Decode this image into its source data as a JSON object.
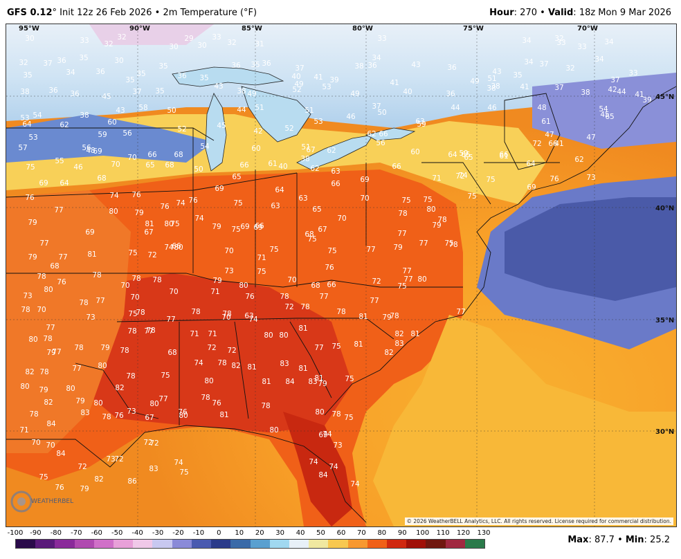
{
  "header": {
    "model": "GFS 0.12",
    "model_deg": "°",
    "init": "Init 12z 26 Feb 2026",
    "sep1": "•",
    "field": "2m Temperature (°F)",
    "hour_label": "Hour",
    "hour_value": "270",
    "sep2": "•",
    "valid_label": "Valid",
    "valid_value": "18z Mon 9 Mar 2026"
  },
  "map": {
    "lon_labels": [
      "95°W",
      "90°W",
      "85°W",
      "80°W",
      "75°W",
      "70°W"
    ],
    "lat_labels": [
      "45°N",
      "40°N",
      "35°N",
      "30°N"
    ],
    "copyright": "© 2026 WeatherBELL Analytics, LLC. All rights reserved. License required for commercial distribution.",
    "logo_text": "WEATHERBELL",
    "temperatures": [
      {
        "v": "30"
      },
      {
        "v": "33"
      },
      {
        "v": "32"
      },
      {
        "v": "32"
      },
      {
        "v": "30"
      },
      {
        "v": "29"
      },
      {
        "v": "30"
      },
      {
        "v": "33"
      },
      {
        "v": "32"
      },
      {
        "v": "31"
      },
      {
        "v": "33"
      },
      {
        "v": "34"
      },
      {
        "v": "33"
      },
      {
        "v": "32"
      },
      {
        "v": "33"
      },
      {
        "v": "34"
      },
      {
        "v": "32"
      },
      {
        "v": "37"
      },
      {
        "v": "36"
      },
      {
        "v": "35"
      },
      {
        "v": "30"
      },
      {
        "v": "35"
      },
      {
        "v": "36"
      },
      {
        "v": "35"
      },
      {
        "v": "36"
      },
      {
        "v": "37"
      },
      {
        "v": "34"
      },
      {
        "v": "36"
      },
      {
        "v": "43"
      },
      {
        "v": "36"
      },
      {
        "v": "43"
      },
      {
        "v": "34"
      },
      {
        "v": "37"
      },
      {
        "v": "32"
      },
      {
        "v": "34"
      },
      {
        "v": "33"
      },
      {
        "v": "35"
      },
      {
        "v": "34"
      },
      {
        "v": "36"
      },
      {
        "v": "35"
      },
      {
        "v": "35"
      },
      {
        "v": "36"
      },
      {
        "v": "35"
      },
      {
        "v": "40"
      },
      {
        "v": "41"
      },
      {
        "v": "39"
      },
      {
        "v": "38"
      },
      {
        "v": "41"
      },
      {
        "v": "51"
      },
      {
        "v": "49"
      },
      {
        "v": "35"
      },
      {
        "v": "38"
      },
      {
        "v": "38"
      },
      {
        "v": "41"
      },
      {
        "v": "37"
      },
      {
        "v": "37"
      },
      {
        "v": "38"
      },
      {
        "v": "36"
      },
      {
        "v": "36"
      },
      {
        "v": "45"
      },
      {
        "v": "37"
      },
      {
        "v": "35"
      },
      {
        "v": "38"
      },
      {
        "v": "43"
      },
      {
        "v": "49"
      },
      {
        "v": "52"
      },
      {
        "v": "49"
      },
      {
        "v": "53"
      },
      {
        "v": "49"
      },
      {
        "v": "40"
      },
      {
        "v": "36"
      },
      {
        "v": "38"
      },
      {
        "v": "42"
      },
      {
        "v": "44"
      },
      {
        "v": "41"
      },
      {
        "v": "39"
      },
      {
        "v": "53"
      },
      {
        "v": "54"
      },
      {
        "v": "38"
      },
      {
        "v": "43"
      },
      {
        "v": "58"
      },
      {
        "v": "50"
      },
      {
        "v": "44"
      },
      {
        "v": "51"
      },
      {
        "v": "51"
      },
      {
        "v": "37"
      },
      {
        "v": "44"
      },
      {
        "v": "46"
      },
      {
        "v": "48"
      },
      {
        "v": "54"
      },
      {
        "v": "45"
      },
      {
        "v": "64"
      },
      {
        "v": "62"
      },
      {
        "v": "60"
      },
      {
        "v": "59"
      },
      {
        "v": "56"
      },
      {
        "v": "52"
      },
      {
        "v": "45"
      },
      {
        "v": "42"
      },
      {
        "v": "52"
      },
      {
        "v": "53"
      },
      {
        "v": "46"
      },
      {
        "v": "50"
      },
      {
        "v": "59"
      },
      {
        "v": "63"
      },
      {
        "v": "61"
      },
      {
        "v": "47"
      },
      {
        "v": "65"
      },
      {
        "v": "57"
      },
      {
        "v": "53"
      },
      {
        "v": "56"
      },
      {
        "v": "69"
      },
      {
        "v": "66"
      },
      {
        "v": "54"
      },
      {
        "v": "60"
      },
      {
        "v": "62"
      },
      {
        "v": "62"
      },
      {
        "v": "66"
      },
      {
        "v": "59"
      },
      {
        "v": "65"
      },
      {
        "v": "61"
      },
      {
        "v": "66"
      },
      {
        "v": "72"
      },
      {
        "v": "47"
      },
      {
        "v": "41"
      },
      {
        "v": "48"
      },
      {
        "v": "70"
      },
      {
        "v": "68"
      },
      {
        "v": "66"
      },
      {
        "v": "61"
      },
      {
        "v": "67"
      },
      {
        "v": "51"
      },
      {
        "v": "56"
      },
      {
        "v": "60"
      },
      {
        "v": "64"
      },
      {
        "v": "65"
      },
      {
        "v": "66"
      },
      {
        "v": "64"
      },
      {
        "v": "62"
      },
      {
        "v": "75"
      },
      {
        "v": "55"
      },
      {
        "v": "46"
      },
      {
        "v": "70"
      },
      {
        "v": "65"
      },
      {
        "v": "68"
      },
      {
        "v": "50"
      },
      {
        "v": "40"
      },
      {
        "v": "38"
      },
      {
        "v": "62"
      },
      {
        "v": "63"
      },
      {
        "v": "66"
      },
      {
        "v": "72"
      },
      {
        "v": "69"
      },
      {
        "v": "76"
      },
      {
        "v": "73"
      },
      {
        "v": "69"
      },
      {
        "v": "64"
      },
      {
        "v": "68"
      },
      {
        "v": "69"
      },
      {
        "v": "65"
      },
      {
        "v": "64"
      },
      {
        "v": "66"
      },
      {
        "v": "69"
      },
      {
        "v": "71"
      },
      {
        "v": "74"
      },
      {
        "v": "75"
      },
      {
        "v": "76"
      },
      {
        "v": "74"
      },
      {
        "v": "76"
      },
      {
        "v": "76"
      },
      {
        "v": "74"
      },
      {
        "v": "76"
      },
      {
        "v": "75"
      },
      {
        "v": "63"
      },
      {
        "v": "63"
      },
      {
        "v": "65"
      },
      {
        "v": "70"
      },
      {
        "v": "75"
      },
      {
        "v": "75"
      },
      {
        "v": "75"
      },
      {
        "v": "77"
      },
      {
        "v": "80"
      },
      {
        "v": "79"
      },
      {
        "v": "81"
      },
      {
        "v": "75"
      },
      {
        "v": "79"
      },
      {
        "v": "74"
      },
      {
        "v": "66"
      },
      {
        "v": "67"
      },
      {
        "v": "70"
      },
      {
        "v": "78"
      },
      {
        "v": "80"
      },
      {
        "v": "78"
      },
      {
        "v": "79"
      },
      {
        "v": "79"
      },
      {
        "v": "69"
      },
      {
        "v": "67"
      },
      {
        "v": "80"
      },
      {
        "v": "75"
      },
      {
        "v": "69"
      },
      {
        "v": "69"
      },
      {
        "v": "68"
      },
      {
        "v": "75"
      },
      {
        "v": "77"
      },
      {
        "v": "77"
      },
      {
        "v": "78"
      },
      {
        "v": "77"
      },
      {
        "v": "77"
      },
      {
        "v": "81"
      },
      {
        "v": "75"
      },
      {
        "v": "74"
      },
      {
        "v": "80"
      },
      {
        "v": "70"
      },
      {
        "v": "71"
      },
      {
        "v": "75"
      },
      {
        "v": "75"
      },
      {
        "v": "77"
      },
      {
        "v": "79"
      },
      {
        "v": "75"
      },
      {
        "v": "79"
      },
      {
        "v": "68"
      },
      {
        "v": "72"
      },
      {
        "v": "66"
      },
      {
        "v": "73"
      },
      {
        "v": "75"
      },
      {
        "v": "76"
      },
      {
        "v": "77"
      },
      {
        "v": "78"
      },
      {
        "v": "76"
      },
      {
        "v": "78"
      },
      {
        "v": "70"
      },
      {
        "v": "78"
      },
      {
        "v": "78"
      },
      {
        "v": "79"
      },
      {
        "v": "80"
      },
      {
        "v": "70"
      },
      {
        "v": "68"
      },
      {
        "v": "66"
      },
      {
        "v": "72"
      },
      {
        "v": "75"
      },
      {
        "v": "77"
      },
      {
        "v": "80"
      },
      {
        "v": "73"
      },
      {
        "v": "80"
      },
      {
        "v": "78"
      },
      {
        "v": "77"
      },
      {
        "v": "70"
      },
      {
        "v": "70"
      },
      {
        "v": "71"
      },
      {
        "v": "76"
      },
      {
        "v": "78"
      },
      {
        "v": "77"
      },
      {
        "v": "77"
      },
      {
        "v": "78"
      },
      {
        "v": "70"
      },
      {
        "v": "73"
      },
      {
        "v": "75"
      },
      {
        "v": "78"
      },
      {
        "v": "78"
      },
      {
        "v": "78"
      },
      {
        "v": "63"
      },
      {
        "v": "72"
      },
      {
        "v": "78"
      },
      {
        "v": "78"
      },
      {
        "v": "81"
      },
      {
        "v": "79"
      },
      {
        "v": "78"
      },
      {
        "v": "77"
      },
      {
        "v": "77"
      },
      {
        "v": "78"
      },
      {
        "v": "77"
      },
      {
        "v": "77"
      },
      {
        "v": "71"
      },
      {
        "v": "71"
      },
      {
        "v": "70"
      },
      {
        "v": "74"
      },
      {
        "v": "80"
      },
      {
        "v": "80"
      },
      {
        "v": "81"
      },
      {
        "v": "82"
      },
      {
        "v": "81"
      },
      {
        "v": "80"
      },
      {
        "v": "78"
      },
      {
        "v": "78"
      },
      {
        "v": "79"
      },
      {
        "v": "78"
      },
      {
        "v": "78"
      },
      {
        "v": "68"
      },
      {
        "v": "72"
      },
      {
        "v": "72"
      },
      {
        "v": "77"
      },
      {
        "v": "75"
      },
      {
        "v": "81"
      },
      {
        "v": "82"
      },
      {
        "v": "83"
      },
      {
        "v": "79"
      },
      {
        "v": "77"
      },
      {
        "v": "77"
      },
      {
        "v": "78"
      },
      {
        "v": "80"
      },
      {
        "v": "78"
      },
      {
        "v": "75"
      },
      {
        "v": "74"
      },
      {
        "v": "78"
      },
      {
        "v": "82"
      },
      {
        "v": "81"
      },
      {
        "v": "83"
      },
      {
        "v": "81"
      },
      {
        "v": "81"
      },
      {
        "v": "82"
      },
      {
        "v": "79"
      },
      {
        "v": "80"
      },
      {
        "v": "82"
      },
      {
        "v": "80"
      },
      {
        "v": "80"
      },
      {
        "v": "77"
      },
      {
        "v": "78"
      },
      {
        "v": "80"
      },
      {
        "v": "81"
      },
      {
        "v": "84"
      },
      {
        "v": "83"
      },
      {
        "v": "79"
      },
      {
        "v": "75"
      },
      {
        "v": "80"
      },
      {
        "v": "82"
      },
      {
        "v": "79"
      },
      {
        "v": "73"
      },
      {
        "v": "76"
      },
      {
        "v": "76"
      },
      {
        "v": "81"
      },
      {
        "v": "80"
      },
      {
        "v": "80"
      },
      {
        "v": "78"
      },
      {
        "v": "75"
      },
      {
        "v": "78"
      },
      {
        "v": "84"
      },
      {
        "v": "83"
      },
      {
        "v": "78"
      },
      {
        "v": "76"
      },
      {
        "v": "67"
      },
      {
        "v": "80"
      },
      {
        "v": "78"
      },
      {
        "v": "74"
      },
      {
        "v": "69"
      },
      {
        "v": "71"
      },
      {
        "v": "70"
      },
      {
        "v": "70"
      },
      {
        "v": "72"
      },
      {
        "v": "72"
      },
      {
        "v": "73"
      },
      {
        "v": "84"
      },
      {
        "v": "72"
      },
      {
        "v": "73"
      },
      {
        "v": "72"
      },
      {
        "v": "74"
      },
      {
        "v": "83"
      },
      {
        "v": "75"
      },
      {
        "v": "74"
      },
      {
        "v": "74"
      },
      {
        "v": "75"
      },
      {
        "v": "82"
      },
      {
        "v": "86"
      },
      {
        "v": "84"
      },
      {
        "v": "74"
      },
      {
        "v": "76"
      },
      {
        "v": "79"
      }
    ]
  },
  "colorbar": {
    "ticks": [
      "-100",
      "-90",
      "-80",
      "-70",
      "-60",
      "-50",
      "-40",
      "-30",
      "-20",
      "-10",
      "0",
      "10",
      "20",
      "30",
      "40",
      "50",
      "60",
      "70",
      "80",
      "90",
      "100",
      "110",
      "120",
      "130"
    ],
    "colors": [
      "#2a0a4a",
      "#5a1a7a",
      "#8a2a9a",
      "#b04ab0",
      "#d070c8",
      "#e8a0d8",
      "#f0c8e8",
      "#c8c8f0",
      "#8a8ad8",
      "#4a5ab0",
      "#2a3a8a",
      "#3a6aa8",
      "#5aa0d0",
      "#a0d8f0",
      "#e8f0f8",
      "#f0e8a0",
      "#f8c850",
      "#f89830",
      "#f06018",
      "#d02810",
      "#a01008",
      "#701810",
      "#a02840",
      "#2a7a4a"
    ],
    "max_label": "Max",
    "max_value": "87.7",
    "sep": "•",
    "min_label": "Min",
    "min_value": "25.2"
  }
}
